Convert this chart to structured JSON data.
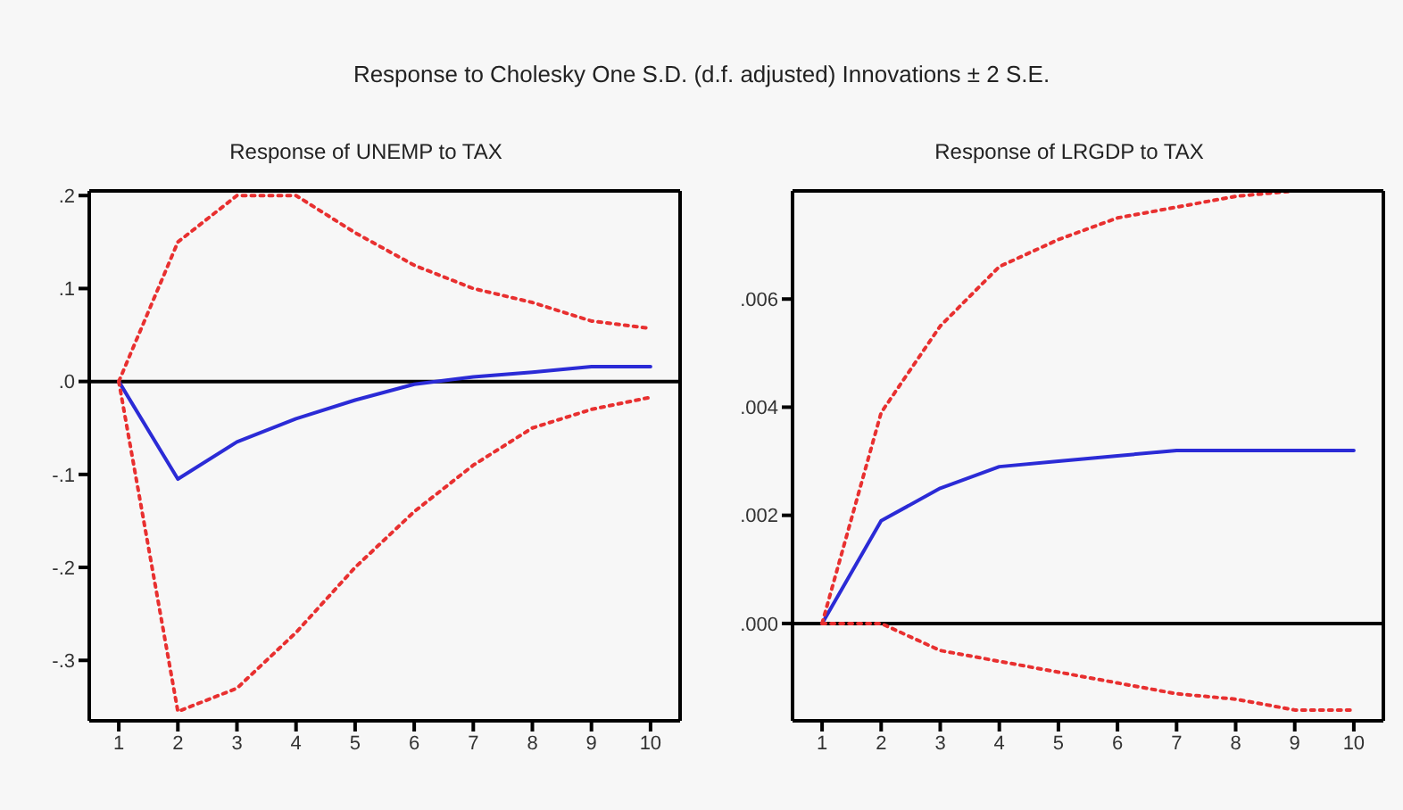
{
  "chart_data": [
    {
      "type": "line",
      "title": "Response of UNEMP to TAX",
      "annotations": [
        "Response to Cholesky One S.D. (d.f. adjusted) Innovations ± 2 S.E."
      ],
      "categories": [
        "1",
        "2",
        "3",
        "4",
        "5",
        "6",
        "7",
        "8",
        "9",
        "10"
      ],
      "ylim": [
        -0.365,
        0.205
      ],
      "yticks": [
        {
          "value": 0.2,
          "label": ".2"
        },
        {
          "value": 0.1,
          "label": ".1"
        },
        {
          "value": 0,
          "label": ".0"
        },
        {
          "value": -0.1,
          "label": "-.1"
        },
        {
          "value": -0.2,
          "label": "-.2"
        },
        {
          "value": -0.3,
          "label": "-.3"
        }
      ],
      "grid": false,
      "legend": false,
      "ref_lines": [
        {
          "axis": "y",
          "value": 0,
          "color": "#000000"
        }
      ],
      "series": [
        {
          "color": "#2b2bd6",
          "line_style": "solid",
          "values": [
            0,
            -0.105,
            -0.065,
            -0.04,
            -0.02,
            -0.003,
            0.005,
            0.01,
            0.016,
            0.016
          ]
        },
        {
          "color": "#e83030",
          "line_style": "dotted",
          "values": [
            0,
            0.15,
            0.2,
            0.2,
            0.16,
            0.125,
            0.1,
            0.085,
            0.065,
            0.057
          ]
        },
        {
          "color": "#e83030",
          "line_style": "dotted",
          "values": [
            0,
            -0.355,
            -0.33,
            -0.27,
            -0.2,
            -0.14,
            -0.09,
            -0.05,
            -0.03,
            -0.017
          ]
        }
      ]
    },
    {
      "type": "line",
      "title": "Response of LRGDP to TAX",
      "categories": [
        "1",
        "2",
        "3",
        "4",
        "5",
        "6",
        "7",
        "8",
        "9",
        "10"
      ],
      "ylim": [
        -0.0018,
        0.008
      ],
      "yticks": [
        {
          "value": 0,
          "label": ".000"
        },
        {
          "value": 0.002,
          "label": ".002"
        },
        {
          "value": 0.004,
          "label": ".004"
        },
        {
          "value": 0.006,
          "label": ".006"
        }
      ],
      "grid": false,
      "legend": false,
      "ref_lines": [
        {
          "axis": "y",
          "value": 0,
          "color": "#000000"
        }
      ],
      "series": [
        {
          "color": "#2b2bd6",
          "line_style": "solid",
          "values": [
            0,
            0.0019,
            0.0025,
            0.0029,
            0.003,
            0.0031,
            0.0032,
            0.0032,
            0.0032,
            0.0032
          ]
        },
        {
          "color": "#e83030",
          "line_style": "dotted",
          "values": [
            0,
            0.0039,
            0.0055,
            0.0066,
            0.0071,
            0.0075,
            0.0077,
            0.0079,
            0.008,
            null
          ]
        },
        {
          "color": "#e83030",
          "line_style": "dotted",
          "values": [
            0,
            0,
            -0.0005,
            -0.0007,
            -0.0009,
            -0.0011,
            -0.0013,
            -0.0014,
            -0.0016,
            -0.0016
          ]
        }
      ]
    }
  ]
}
